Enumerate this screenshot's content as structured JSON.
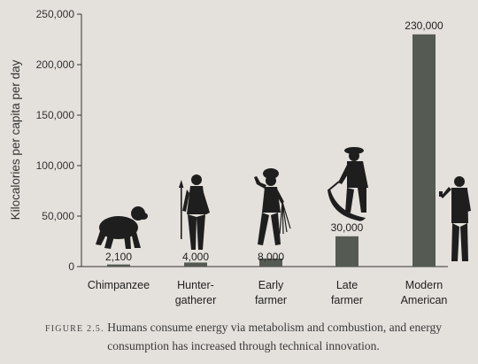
{
  "chart_data": {
    "type": "bar",
    "ylabel": "Kilocalories per capita per day",
    "ylim": [
      0,
      250000
    ],
    "yticks": [
      0,
      50000,
      100000,
      150000,
      200000,
      250000
    ],
    "ytick_labels": [
      "0",
      "50,000",
      "100,000",
      "150,000",
      "200,000",
      "250,000"
    ],
    "categories": [
      [
        "Chimpanzee"
      ],
      [
        "Hunter-",
        "gatherer"
      ],
      [
        "Early",
        "farmer"
      ],
      [
        "Late",
        "farmer"
      ],
      [
        "Modern",
        "American"
      ]
    ],
    "values": [
      2100,
      4000,
      8000,
      30000,
      230000
    ],
    "value_labels": [
      "2,100",
      "4,000",
      "8,000",
      "30,000",
      "230,000"
    ],
    "figures": [
      "chimpanzee-silhouette",
      "hunter-gatherer-silhouette",
      "early-farmer-silhouette",
      "late-farmer-silhouette",
      "modern-american-silhouette"
    ],
    "bar_color": "#555a52",
    "grid": false
  },
  "caption": {
    "label": "FIGURE 2.5.",
    "text": "Humans consume energy via metabolism and combustion, and energy consumption has increased through technical innovation."
  }
}
